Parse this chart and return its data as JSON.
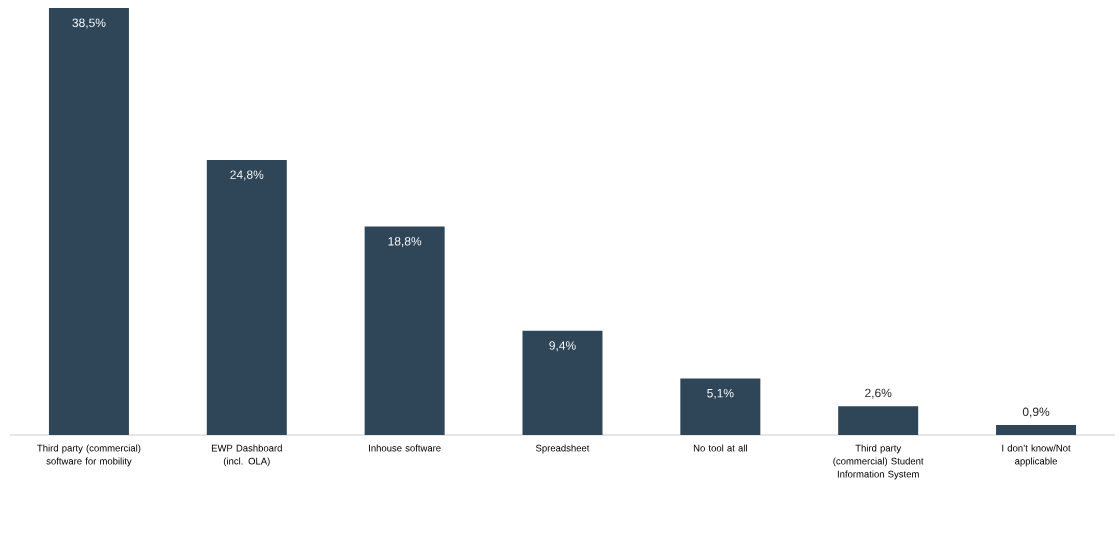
{
  "chart_data": {
    "type": "bar",
    "categories": [
      "Third party (commercial) software for mobility",
      "EWP Dashboard (incl. OLA)",
      "Inhouse software",
      "Spreadsheet",
      "No tool at all",
      "Third party (commercial) Student Information System",
      "I don’t know/Not applicable"
    ],
    "values": [
      38.5,
      24.8,
      18.8,
      9.4,
      5.1,
      2.6,
      0.9
    ],
    "value_labels": [
      "38,5%",
      "24,8%",
      "18,8%",
      "9,4%",
      "5,1%",
      "2,6%",
      "0,9%"
    ],
    "color": "#2f4558"
  }
}
